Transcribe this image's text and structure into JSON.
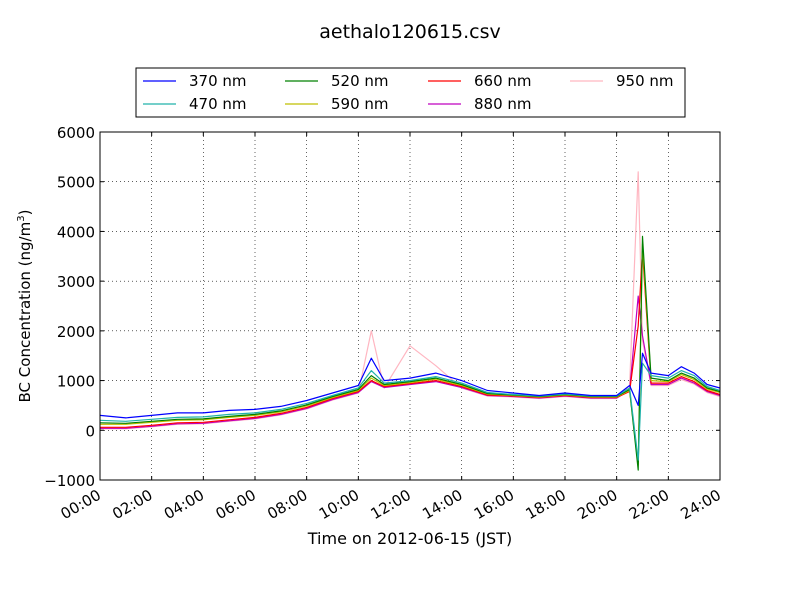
{
  "chart_data": {
    "type": "line",
    "title": "aethalo120615.csv",
    "xlabel": "Time on 2012-06-15 (JST)",
    "ylabel_main": "BC Concentration (ng/m",
    "ylabel_sup": "3",
    "ylabel_end": ")",
    "xlim": [
      "00:00",
      "24:00"
    ],
    "ylim": [
      -1000,
      6000
    ],
    "xticks": [
      "00:00",
      "02:00",
      "04:00",
      "06:00",
      "08:00",
      "10:00",
      "12:00",
      "14:00",
      "16:00",
      "18:00",
      "20:00",
      "22:00",
      "24:00"
    ],
    "yticks": [
      "−1000",
      "0",
      "1000",
      "2000",
      "3000",
      "4000",
      "5000",
      "6000"
    ],
    "grid": true,
    "legend_position": "top",
    "series": [
      {
        "name": "370 nm",
        "color": "#0000ff",
        "x": [
          "00:00",
          "01:00",
          "02:00",
          "03:00",
          "04:00",
          "05:00",
          "06:00",
          "07:00",
          "08:00",
          "09:00",
          "10:00",
          "10:30",
          "11:00",
          "12:00",
          "13:00",
          "14:00",
          "15:00",
          "16:00",
          "17:00",
          "18:00",
          "19:00",
          "20:00",
          "20:30",
          "20:50",
          "21:00",
          "21:20",
          "22:00",
          "22:30",
          "23:00",
          "23:30",
          "24:00"
        ],
        "y": [
          300,
          250,
          300,
          350,
          350,
          400,
          420,
          480,
          600,
          750,
          900,
          1450,
          1000,
          1050,
          1150,
          1000,
          800,
          750,
          700,
          750,
          700,
          700,
          900,
          500,
          1550,
          1150,
          1100,
          1280,
          1150,
          920,
          850
        ]
      },
      {
        "name": "470 nm",
        "color": "#20b2aa",
        "x": [
          "00:00",
          "01:00",
          "02:00",
          "03:00",
          "04:00",
          "05:00",
          "06:00",
          "07:00",
          "08:00",
          "09:00",
          "10:00",
          "10:30",
          "11:00",
          "12:00",
          "13:00",
          "14:00",
          "15:00",
          "16:00",
          "17:00",
          "18:00",
          "19:00",
          "20:00",
          "20:30",
          "20:50",
          "21:00",
          "21:20",
          "22:00",
          "22:30",
          "23:00",
          "23:30",
          "24:00"
        ],
        "y": [
          200,
          180,
          220,
          260,
          270,
          320,
          350,
          420,
          540,
          700,
          850,
          1200,
          950,
          1000,
          1080,
          950,
          760,
          720,
          690,
          730,
          690,
          690,
          850,
          -600,
          1350,
          1100,
          1050,
          1200,
          1100,
          880,
          800
        ]
      },
      {
        "name": "520 nm",
        "color": "#008000",
        "x": [
          "00:00",
          "01:00",
          "02:00",
          "03:00",
          "04:00",
          "05:00",
          "06:00",
          "07:00",
          "08:00",
          "09:00",
          "10:00",
          "10:30",
          "11:00",
          "12:00",
          "13:00",
          "14:00",
          "15:00",
          "16:00",
          "17:00",
          "18:00",
          "19:00",
          "20:00",
          "20:30",
          "20:50",
          "21:00",
          "21:20",
          "22:00",
          "22:30",
          "23:00",
          "23:30",
          "24:00"
        ],
        "y": [
          150,
          140,
          180,
          220,
          230,
          280,
          320,
          390,
          510,
          680,
          820,
          1100,
          920,
          980,
          1050,
          920,
          740,
          710,
          680,
          720,
          680,
          680,
          820,
          -800,
          3900,
          1050,
          1000,
          1150,
          1050,
          850,
          780
        ]
      },
      {
        "name": "590 nm",
        "color": "#bfbf00",
        "x": [
          "00:00",
          "01:00",
          "02:00",
          "03:00",
          "04:00",
          "05:00",
          "06:00",
          "07:00",
          "08:00",
          "09:00",
          "10:00",
          "10:30",
          "11:00",
          "12:00",
          "13:00",
          "14:00",
          "15:00",
          "16:00",
          "17:00",
          "18:00",
          "19:00",
          "20:00",
          "20:30",
          "20:50",
          "21:00",
          "21:20",
          "22:00",
          "22:30",
          "23:00",
          "23:30",
          "24:00"
        ],
        "y": [
          120,
          120,
          160,
          200,
          210,
          260,
          300,
          370,
          490,
          660,
          800,
          1050,
          900,
          960,
          1030,
          900,
          730,
          700,
          670,
          710,
          670,
          670,
          800,
          -700,
          3750,
          1000,
          980,
          1120,
          1020,
          830,
          760
        ]
      },
      {
        "name": "660 nm",
        "color": "#ff0000",
        "x": [
          "00:00",
          "01:00",
          "02:00",
          "03:00",
          "04:00",
          "05:00",
          "06:00",
          "07:00",
          "08:00",
          "09:00",
          "10:00",
          "10:30",
          "11:00",
          "12:00",
          "13:00",
          "14:00",
          "15:00",
          "16:00",
          "17:00",
          "18:00",
          "19:00",
          "20:00",
          "20:30",
          "20:50",
          "21:00",
          "21:20",
          "22:00",
          "22:30",
          "23:00",
          "23:30",
          "24:00"
        ],
        "y": [
          60,
          60,
          100,
          150,
          160,
          210,
          260,
          340,
          460,
          640,
          780,
          1000,
          880,
          940,
          1000,
          880,
          710,
          690,
          660,
          700,
          660,
          660,
          780,
          2100,
          3600,
          950,
          950,
          1080,
          980,
          800,
          720
        ]
      },
      {
        "name": "880 nm",
        "color": "#bf00bf",
        "x": [
          "00:00",
          "01:00",
          "02:00",
          "03:00",
          "04:00",
          "05:00",
          "06:00",
          "07:00",
          "08:00",
          "09:00",
          "10:00",
          "10:30",
          "11:00",
          "12:00",
          "13:00",
          "14:00",
          "15:00",
          "16:00",
          "17:00",
          "18:00",
          "19:00",
          "20:00",
          "20:30",
          "20:50",
          "21:00",
          "21:20",
          "22:00",
          "22:30",
          "23:00",
          "23:30",
          "24:00"
        ],
        "y": [
          40,
          40,
          80,
          130,
          140,
          190,
          240,
          320,
          440,
          620,
          760,
          980,
          860,
          920,
          980,
          860,
          700,
          680,
          650,
          690,
          650,
          650,
          800,
          2700,
          1900,
          920,
          920,
          1050,
          950,
          780,
          700
        ]
      },
      {
        "name": "950 nm",
        "color": "#ffb6c1",
        "x": [
          "00:00",
          "01:00",
          "02:00",
          "03:00",
          "04:00",
          "05:00",
          "06:00",
          "07:00",
          "08:00",
          "09:00",
          "10:00",
          "10:30",
          "11:00",
          "12:00",
          "13:00",
          "14:00",
          "15:00",
          "16:00",
          "17:00",
          "18:00",
          "19:00",
          "20:00",
          "20:30",
          "20:50",
          "21:00",
          "21:20",
          "22:00",
          "22:30",
          "23:00",
          "23:30",
          "24:00"
        ],
        "y": [
          30,
          30,
          70,
          120,
          130,
          180,
          230,
          310,
          430,
          610,
          750,
          2000,
          850,
          1700,
          1300,
          850,
          690,
          670,
          640,
          680,
          640,
          640,
          900,
          5200,
          1800,
          900,
          900,
          1020,
          930,
          760,
          680
        ]
      }
    ]
  }
}
